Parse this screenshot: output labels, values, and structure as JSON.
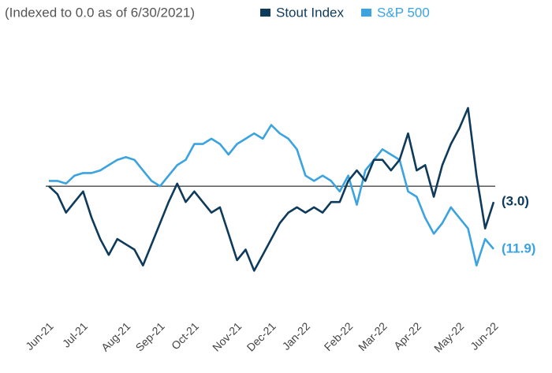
{
  "chart_data": {
    "type": "line",
    "subtitle": "(Indexed to 0.0 as of 6/30/2021)",
    "categories": [
      "Jun-21",
      null,
      null,
      null,
      "Jul-21",
      null,
      null,
      null,
      null,
      "Aug-21",
      null,
      null,
      null,
      "Sep-21",
      null,
      null,
      null,
      "Oct-21",
      null,
      null,
      null,
      null,
      "Nov-21",
      null,
      null,
      null,
      "Dec-21",
      null,
      null,
      null,
      "Jan-22",
      null,
      null,
      null,
      null,
      "Feb-22",
      null,
      null,
      null,
      "Mar-22",
      null,
      null,
      null,
      "Apr-22",
      null,
      null,
      null,
      null,
      "May-22",
      null,
      null,
      null,
      "Jun-22"
    ],
    "series": [
      {
        "name": "Stout Index",
        "color": "#0e3a5c",
        "values": [
          0,
          -1.5,
          -5,
          -3,
          -1,
          -6,
          -10,
          -13,
          -10,
          -11,
          -12,
          -15,
          -11,
          -7,
          -3,
          0.5,
          -3,
          -1,
          -3,
          -5,
          -4,
          -9,
          -14,
          -12,
          -16,
          -13,
          -10,
          -7,
          -5,
          -4,
          -5,
          -4,
          -5,
          -3,
          -3,
          1,
          3,
          1,
          5,
          5,
          3,
          5,
          10,
          3,
          4,
          -2,
          4,
          8,
          11,
          14.8,
          2,
          -8,
          -3
        ],
        "value_labels": [
          null,
          null,
          null,
          null,
          null,
          null,
          null,
          null,
          null,
          null,
          null,
          null,
          null,
          null,
          null,
          null,
          null,
          null,
          null,
          null,
          null,
          null,
          null,
          null,
          null,
          null,
          null,
          null,
          null,
          null,
          null,
          null,
          null,
          null,
          null,
          null,
          null,
          null,
          null,
          null,
          null,
          null,
          null,
          null,
          null,
          null,
          null,
          null,
          null,
          null,
          null,
          null,
          "(3.0)"
        ]
      },
      {
        "name": "S&P 500",
        "color": "#3aa3e0",
        "values": [
          1,
          1,
          0.5,
          2,
          2.5,
          2.5,
          3,
          4,
          5,
          5.5,
          5,
          3,
          1,
          0,
          2,
          4,
          5,
          8,
          8,
          9,
          8,
          6,
          8,
          9,
          10,
          9,
          11.6,
          10,
          9,
          7,
          2,
          1,
          2,
          1,
          -1,
          2,
          -3.5,
          3,
          5,
          7,
          6,
          5,
          -1,
          -2,
          -6,
          -9,
          -7,
          -4,
          -6,
          -8,
          -15,
          -10,
          -11.9
        ],
        "value_labels": [
          null,
          null,
          null,
          null,
          null,
          null,
          null,
          null,
          null,
          null,
          null,
          null,
          null,
          null,
          null,
          null,
          null,
          null,
          null,
          null,
          null,
          null,
          null,
          null,
          null,
          null,
          null,
          null,
          null,
          null,
          null,
          null,
          null,
          null,
          null,
          null,
          null,
          null,
          null,
          null,
          null,
          null,
          null,
          null,
          null,
          null,
          null,
          null,
          null,
          null,
          null,
          null,
          "(11.9)"
        ]
      }
    ],
    "ylim": [
      -17,
      26.3
    ],
    "hline": 0
  }
}
